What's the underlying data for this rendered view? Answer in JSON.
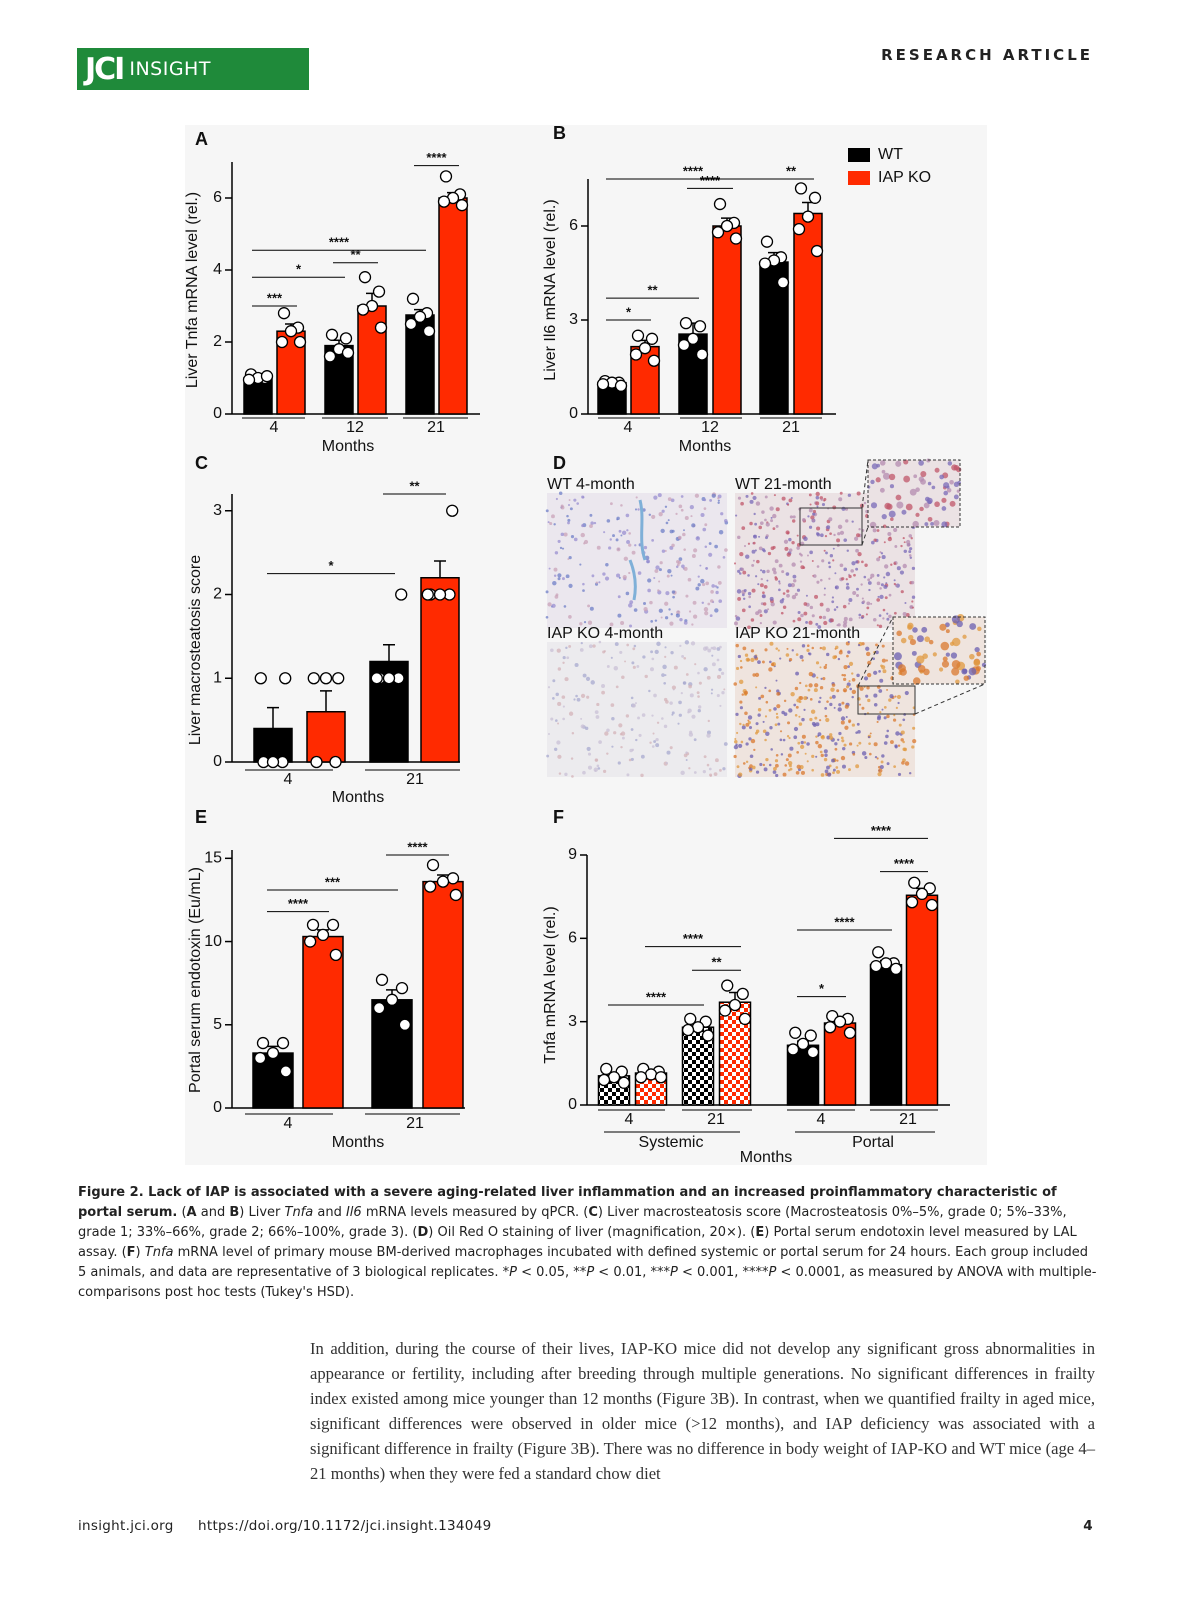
{
  "header": {
    "logo_brand": "JCI",
    "logo_name": "insight",
    "section": "RESEARCH ARTICLE"
  },
  "chart_data": [
    {
      "type": "bar",
      "panel": "A",
      "y_label": "Liver Tnfa mRNA level (rel.)",
      "x_label": "Months",
      "categories": [
        "4",
        "12",
        "21"
      ],
      "series": [
        {
          "color": "#000000",
          "values": [
            1.0,
            1.9,
            2.75
          ],
          "errors": [
            0.1,
            0.15,
            0.15
          ],
          "points": [
            [
              1.1,
              1.0,
              1.0,
              0.95,
              1.05
            ],
            [
              2.2,
              2.1,
              1.8,
              1.6,
              1.7
            ],
            [
              3.2,
              2.8,
              2.7,
              2.5,
              2.3
            ]
          ]
        },
        {
          "color": "#ff2a00",
          "values": [
            2.3,
            3.0,
            6.0
          ],
          "errors": [
            0.2,
            0.35,
            0.15
          ],
          "points": [
            [
              2.8,
              2.4,
              2.3,
              2.0,
              2.0
            ],
            [
              3.8,
              3.4,
              3.0,
              2.9,
              2.4
            ],
            [
              6.6,
              6.1,
              6.0,
              5.9,
              5.8
            ]
          ]
        }
      ],
      "ylim": [
        0,
        7
      ],
      "yticks": [
        0,
        2,
        4,
        6
      ],
      "legend": false,
      "brackets": [
        {
          "label": "***",
          "y": 3.0,
          "from": 0,
          "to": 1
        },
        {
          "label": "*",
          "y": 3.8,
          "from": 0,
          "to": 2
        },
        {
          "label": "**",
          "y": 4.2,
          "from": 2,
          "to": 3
        },
        {
          "label": "****",
          "y": 4.55,
          "from": 0,
          "to": 4
        },
        {
          "label": "****",
          "y": 6.9,
          "from": 4,
          "to": 5
        }
      ]
    },
    {
      "type": "bar",
      "panel": "B",
      "y_label": "Liver Il6 mRNA level (rel.)",
      "x_label": "Months",
      "categories": [
        "4",
        "12",
        "21"
      ],
      "series": [
        {
          "name": "WT",
          "color": "#000000",
          "values": [
            1.0,
            2.55,
            4.85
          ],
          "errors": [
            0.1,
            0.35,
            0.3
          ],
          "points": [
            [
              1.05,
              1.0,
              1.0,
              0.95,
              0.9
            ],
            [
              2.9,
              2.8,
              2.4,
              2.2,
              1.9
            ],
            [
              5.5,
              5.0,
              4.9,
              4.8,
              4.2
            ]
          ]
        },
        {
          "name": "IAP KO",
          "color": "#ff2a00",
          "values": [
            2.15,
            6.0,
            6.4
          ],
          "errors": [
            0.2,
            0.25,
            0.35
          ],
          "points": [
            [
              2.5,
              2.4,
              2.1,
              1.9,
              1.7
            ],
            [
              6.7,
              6.1,
              6.0,
              5.8,
              5.6
            ],
            [
              7.2,
              6.9,
              6.3,
              5.9,
              5.2
            ]
          ]
        }
      ],
      "ylim": [
        0,
        7.5
      ],
      "yticks": [
        0,
        3,
        6
      ],
      "legend": "right",
      "brackets": [
        {
          "label": "*",
          "y": 3.0,
          "from": 0,
          "to": 1
        },
        {
          "label": "**",
          "y": 3.7,
          "from": 0,
          "to": 2
        },
        {
          "label": "****",
          "y": 7.2,
          "from": 2,
          "to": 3
        },
        {
          "label": "****",
          "y": 7.5,
          "from": 0,
          "to": 4
        },
        {
          "label": "**",
          "y": 7.5,
          "from": 4,
          "to": 5
        }
      ]
    },
    {
      "type": "bar",
      "panel": "C",
      "y_label": "Liver macrosteatosis score",
      "x_label": "Months",
      "categories": [
        "4",
        "21"
      ],
      "series": [
        {
          "color": "#000000",
          "values": [
            0.4,
            1.2
          ],
          "errors": [
            0.25,
            0.2
          ],
          "points": [
            [
              0,
              0,
              0,
              1,
              1
            ],
            [
              1,
              1,
              1,
              1,
              2
            ]
          ]
        },
        {
          "color": "#ff2a00",
          "values": [
            0.6,
            2.2
          ],
          "errors": [
            0.25,
            0.2
          ],
          "points": [
            [
              0,
              0,
              1,
              1,
              1
            ],
            [
              2,
              2,
              2,
              2,
              3
            ]
          ]
        }
      ],
      "ylim": [
        0,
        3.2
      ],
      "yticks": [
        0,
        1,
        2,
        3
      ],
      "legend": false,
      "brackets": [
        {
          "label": "*",
          "y": 2.25,
          "from": 0,
          "to": 2
        },
        {
          "label": "**",
          "y": 3.2,
          "from": 2,
          "to": 3
        }
      ]
    },
    {
      "type": "bar",
      "panel": "E",
      "y_label": "Portal serum endotoxin (Eu/mL)",
      "x_label": "Months",
      "categories": [
        "4",
        "21"
      ],
      "series": [
        {
          "color": "#000000",
          "values": [
            3.3,
            6.5
          ],
          "errors": [
            0.4,
            0.6
          ],
          "points": [
            [
              3.9,
              3.9,
              3.3,
              3.0,
              2.2
            ],
            [
              7.7,
              7.2,
              6.5,
              6.0,
              5.0
            ]
          ]
        },
        {
          "color": "#ff2a00",
          "values": [
            10.3,
            13.6
          ],
          "errors": [
            0.4,
            0.4
          ],
          "points": [
            [
              11.0,
              11.0,
              10.4,
              10.0,
              9.2
            ],
            [
              14.6,
              13.8,
              13.6,
              13.3,
              12.8
            ]
          ]
        }
      ],
      "ylim": [
        0,
        15.5
      ],
      "yticks": [
        0,
        5,
        10,
        15
      ],
      "legend": false,
      "brackets": [
        {
          "label": "****",
          "y": 11.8,
          "from": 0,
          "to": 1
        },
        {
          "label": "***",
          "y": 13.1,
          "from": 0,
          "to": 2
        },
        {
          "label": "****",
          "y": 15.2,
          "from": 2,
          "to": 3
        }
      ]
    },
    {
      "type": "bar",
      "panel": "F",
      "y_label": "Tnfa mRNA level (rel.)",
      "x_label": "Months",
      "categories": [
        "4",
        "21",
        "4",
        "21"
      ],
      "group_labels": [
        "Systemic",
        "Portal"
      ],
      "hatched": [
        true,
        true,
        false,
        false
      ],
      "series": [
        {
          "color": "#000000",
          "values": [
            1.05,
            2.8,
            2.15,
            5.05
          ],
          "errors": [
            0.1,
            0.15,
            0.15,
            0.15
          ],
          "points": [
            [
              1.3,
              1.2,
              1.0,
              0.9,
              0.8
            ],
            [
              3.1,
              3.0,
              2.8,
              2.7,
              2.5
            ],
            [
              2.6,
              2.5,
              2.2,
              2.0,
              1.9
            ],
            [
              5.5,
              5.1,
              5.1,
              5.0,
              4.9
            ]
          ]
        },
        {
          "color": "#ff2a00",
          "values": [
            1.15,
            3.7,
            2.95,
            7.55
          ],
          "errors": [
            0.1,
            0.35,
            0.15,
            0.25
          ],
          "points": [
            [
              1.3,
              1.2,
              1.1,
              1.0,
              1.0
            ],
            [
              4.3,
              4.0,
              3.6,
              3.4,
              3.1
            ],
            [
              3.2,
              3.1,
              3.0,
              2.8,
              2.6
            ],
            [
              8.0,
              7.8,
              7.6,
              7.3,
              7.2
            ]
          ]
        }
      ],
      "ylim": [
        0,
        9
      ],
      "yticks": [
        0,
        3,
        6,
        9
      ],
      "legend": false,
      "brackets": [
        {
          "label": "****",
          "y": 3.6,
          "from": 0,
          "to": 2
        },
        {
          "label": "**",
          "y": 4.85,
          "from": 2,
          "to": 3
        },
        {
          "label": "****",
          "y": 5.7,
          "from": 1,
          "to": 3
        },
        {
          "label": "*",
          "y": 3.9,
          "from": 4,
          "to": 5
        },
        {
          "label": "****",
          "y": 6.3,
          "from": 4,
          "to": 6
        },
        {
          "label": "****",
          "y": 8.4,
          "from": 6,
          "to": 7
        },
        {
          "label": "****",
          "y": 9.6,
          "from": 5,
          "to": 7
        }
      ]
    }
  ],
  "micrographs": {
    "panel": "D",
    "labels": [
      "WT 4-month",
      "WT 21-month",
      "IAP KO 4-month",
      "IAP KO 21-month"
    ]
  },
  "caption": {
    "runs": [
      {
        "text": "Figure 2. Lack of IAP is associated with a severe aging-related liver inflammation and an increased proinflammatory characteristic of portal serum.",
        "style": "bold"
      },
      {
        "text": " ("
      },
      {
        "text": "A",
        "style": "bold"
      },
      {
        "text": " and "
      },
      {
        "text": "B",
        "style": "bold"
      },
      {
        "text": ") Liver "
      },
      {
        "text": "Tnfa",
        "style": "italic"
      },
      {
        "text": " and "
      },
      {
        "text": "Il6",
        "style": "italic"
      },
      {
        "text": " mRNA levels measured by qPCR. ("
      },
      {
        "text": "C",
        "style": "bold"
      },
      {
        "text": ") Liver macrosteatosis score (Macrosteatosis 0%–5%, grade 0; 5%–33%, grade 1; 33%–66%, grade 2; 66%–100%, grade 3). ("
      },
      {
        "text": "D",
        "style": "bold"
      },
      {
        "text": ") Oil Red O staining of liver (magnification, 20×). ("
      },
      {
        "text": "E",
        "style": "bold"
      },
      {
        "text": ") Portal serum endotoxin level measured by LAL assay. ("
      },
      {
        "text": "F",
        "style": "bold"
      },
      {
        "text": ") "
      },
      {
        "text": "Tnfa",
        "style": "italic"
      },
      {
        "text": " mRNA level of primary mouse BM-derived macrophages incubated with defined systemic or portal serum for 24 hours. Each group included 5 animals, and data are representative of 3 biological replicates. *"
      },
      {
        "text": "P",
        "style": "italic"
      },
      {
        "text": " < 0.05, **"
      },
      {
        "text": "P",
        "style": "italic"
      },
      {
        "text": " < 0.01, ***"
      },
      {
        "text": "P",
        "style": "italic"
      },
      {
        "text": " < 0.001, ****"
      },
      {
        "text": "P",
        "style": "italic"
      },
      {
        "text": " < 0.0001, as measured by ANOVA with multiple-comparisons post hoc tests (Tukey's HSD)."
      }
    ]
  },
  "body": "In addition, during the course of their lives, IAP-KO mice did not develop any significant gross abnormalities in appearance or fertility, including after breeding through multiple generations. No significant differences in frailty index existed among mice younger than 12 months (Figure 3B). In contrast, when we quantified frailty in aged mice, significant differences were observed in older mice (>12 months), and IAP deficiency was associated with a significant difference in frailty (Figure 3B). There was no difference in body weight of IAP-KO and WT mice (age 4–21 months) when they were fed a standard chow diet",
  "footer": {
    "site": "insight.jci.org",
    "doi": "https://doi.org/10.1172/jci.insight.134049",
    "page": "4"
  }
}
